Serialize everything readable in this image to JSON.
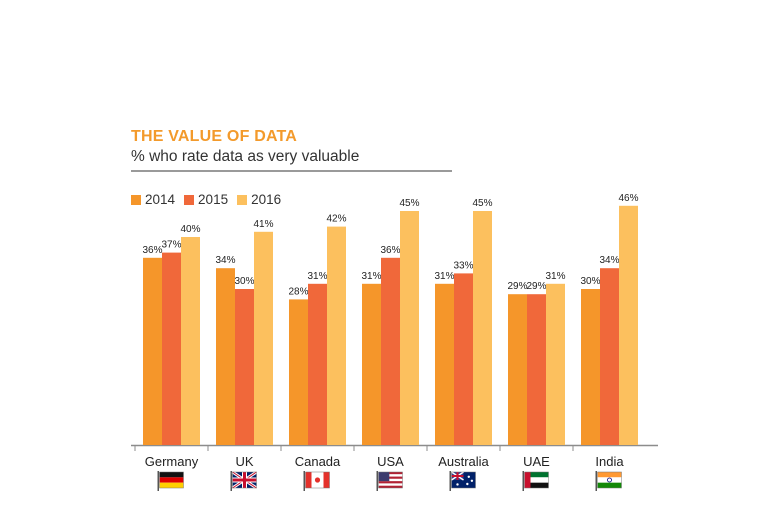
{
  "title": "THE VALUE OF DATA",
  "subtitle": "% who rate data as very valuable",
  "colors": {
    "s2014": "#f5962a",
    "s2015": "#f0683a",
    "s2016": "#fcc05e",
    "title": "#f39a2b"
  },
  "chart_data": {
    "type": "bar",
    "title": "THE VALUE OF DATA",
    "subtitle": "% who rate data as very valuable",
    "categories": [
      "Germany",
      "UK",
      "Canada",
      "USA",
      "Australia",
      "UAE",
      "India"
    ],
    "series": [
      {
        "name": "2014",
        "values": [
          36,
          34,
          28,
          31,
          31,
          29,
          30
        ],
        "labels": [
          "36%",
          "34%",
          "28%",
          "31%",
          "31%",
          "29%",
          "30%"
        ]
      },
      {
        "name": "2015",
        "values": [
          37,
          30,
          31,
          36,
          33,
          29,
          34
        ],
        "labels": [
          "37%",
          "30%",
          "31%",
          "36%",
          "33%",
          "29%",
          "34%"
        ]
      },
      {
        "name": "2016",
        "values": [
          40,
          41,
          42,
          45,
          45,
          31,
          46
        ],
        "labels": [
          "40%",
          "41%",
          "42%",
          "45%",
          "45%",
          "31%",
          "46%"
        ]
      }
    ],
    "flags": [
      "flag-germany-icon",
      "flag-uk-icon",
      "flag-canada-icon",
      "flag-usa-icon",
      "flag-australia-icon",
      "flag-uae-icon",
      "flag-india-icon"
    ],
    "legend_position": "top-left",
    "grid": false
  }
}
